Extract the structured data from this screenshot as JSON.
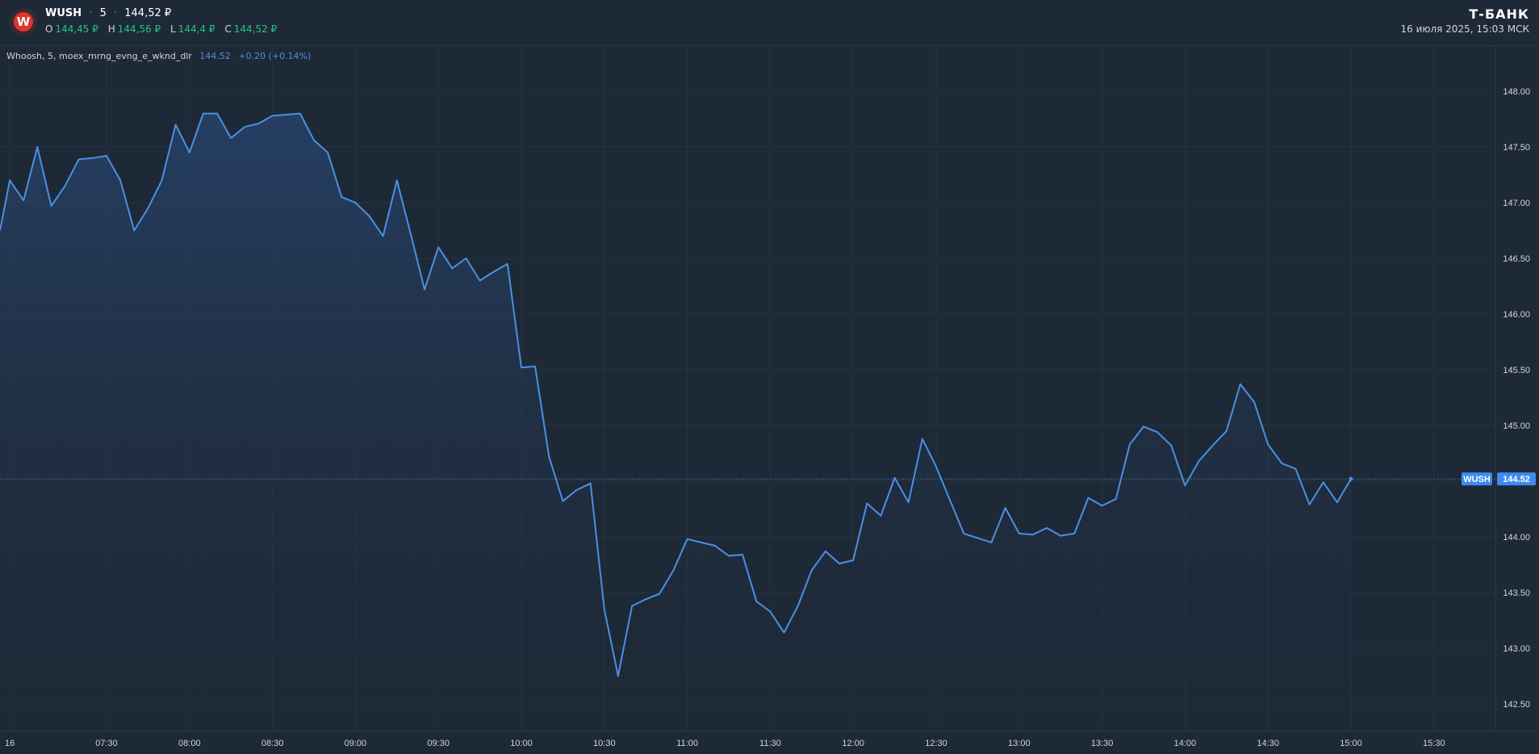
{
  "header": {
    "symbol": "WUSH",
    "interval": "5",
    "price": "144,52 ₽",
    "ohlc": [
      {
        "label": "O",
        "value": "144,45 ₽"
      },
      {
        "label": "H",
        "value": "144,56 ₽"
      },
      {
        "label": "L",
        "value": "144,4 ₽"
      },
      {
        "label": "C",
        "value": "144,52 ₽"
      }
    ],
    "brand": "Т-БАНК",
    "datetime": "16 июля 2025, 15:03 МСК",
    "logo_letter": "W"
  },
  "legend": {
    "name": "Whoosh, 5, moex_mrng_evng_e_wknd_dlr",
    "price": "144.52",
    "change": "+0.20 (+0.14%)"
  },
  "colors": {
    "background": "#1e2937",
    "line": "#4a90e2",
    "up": "#26c281",
    "grid": "#263241",
    "logo": "#e0332f"
  },
  "chart_data": {
    "type": "area",
    "ylim": [
      142.3,
      148.4
    ],
    "y_ticks": [
      "148.00",
      "147.50",
      "147.00",
      "146.50",
      "146.00",
      "145.50",
      "145.00",
      "144.50",
      "144.00",
      "143.50",
      "143.00",
      "142.50"
    ],
    "y_tick_values": [
      148.0,
      147.5,
      147.0,
      146.5,
      146.0,
      145.5,
      145.0,
      144.5,
      144.0,
      143.5,
      143.0,
      142.5
    ],
    "x_ticks": [
      "16",
      "07:30",
      "08:00",
      "08:30",
      "09:00",
      "09:30",
      "10:00",
      "10:30",
      "11:00",
      "11:30",
      "12:00",
      "12:30",
      "13:00",
      "13:30",
      "14:00",
      "14:30",
      "15:00",
      "15:30"
    ],
    "x_tick_times": [
      "06:55",
      "07:30",
      "08:00",
      "08:30",
      "09:00",
      "09:30",
      "10:00",
      "10:30",
      "11:00",
      "11:30",
      "12:00",
      "12:30",
      "13:00",
      "13:30",
      "14:00",
      "14:30",
      "15:00",
      "15:30"
    ],
    "x_end_time": "15:50",
    "last_label": "WUSH",
    "last_value": "144.52",
    "last_price": 144.52,
    "series": [
      {
        "x": [
          "06:50",
          "06:55",
          "07:00",
          "07:05",
          "07:10",
          "07:15",
          "07:20",
          "07:25",
          "07:30",
          "07:35",
          "07:40",
          "07:45",
          "07:50",
          "07:55",
          "08:00",
          "08:05",
          "08:10",
          "08:15",
          "08:20",
          "08:25",
          "08:30",
          "08:35",
          "08:40",
          "08:45",
          "08:50",
          "08:55",
          "09:00",
          "09:05",
          "09:10",
          "09:15",
          "09:20",
          "09:25",
          "09:30",
          "09:35",
          "09:40",
          "09:45",
          "09:50",
          "09:55",
          "10:00",
          "10:05",
          "10:10",
          "10:15",
          "10:20",
          "10:25",
          "10:30",
          "10:35",
          "10:40",
          "10:45",
          "10:50",
          "10:55",
          "11:00",
          "11:05",
          "11:10",
          "11:15",
          "11:20",
          "11:25",
          "11:30",
          "11:35",
          "11:40",
          "11:45",
          "11:50",
          "11:55",
          "12:00",
          "12:05",
          "12:10",
          "12:15",
          "12:20",
          "12:25",
          "12:30",
          "12:35",
          "12:40",
          "12:45",
          "12:50",
          "12:55",
          "13:00",
          "13:05",
          "13:10",
          "13:15",
          "13:20",
          "13:25",
          "13:30",
          "13:35",
          "13:40",
          "13:45",
          "13:50",
          "13:55",
          "14:00",
          "14:05",
          "14:10",
          "14:15",
          "14:20",
          "14:25",
          "14:30",
          "14:35",
          "14:40",
          "14:45",
          "14:50",
          "14:55",
          "15:00"
        ],
        "values": [
          146.75,
          147.2,
          147.02,
          147.5,
          146.97,
          147.15,
          147.39,
          147.4,
          147.42,
          147.2,
          146.75,
          146.95,
          147.2,
          147.7,
          147.45,
          147.8,
          147.8,
          147.58,
          147.68,
          147.71,
          147.78,
          147.79,
          147.8,
          147.56,
          147.45,
          147.05,
          147.0,
          146.88,
          146.7,
          147.2,
          146.72,
          146.22,
          146.6,
          146.41,
          146.5,
          146.3,
          146.38,
          146.45,
          145.52,
          145.53,
          144.72,
          144.32,
          144.42,
          144.48,
          143.35,
          142.75,
          143.38,
          143.44,
          143.49,
          143.7,
          143.98,
          143.95,
          143.92,
          143.83,
          143.84,
          143.42,
          143.33,
          143.14,
          143.38,
          143.7,
          143.87,
          143.76,
          143.79,
          144.3,
          144.19,
          144.53,
          144.31,
          144.88,
          144.63,
          144.33,
          144.03,
          143.99,
          143.95,
          144.26,
          144.03,
          144.02,
          144.08,
          144.01,
          144.03,
          144.35,
          144.28,
          144.34,
          144.83,
          144.99,
          144.94,
          144.82,
          144.46,
          144.68,
          144.82,
          144.95,
          145.37,
          145.21,
          144.83,
          144.66,
          144.61,
          144.29,
          144.49,
          144.31,
          144.52
        ]
      }
    ]
  }
}
